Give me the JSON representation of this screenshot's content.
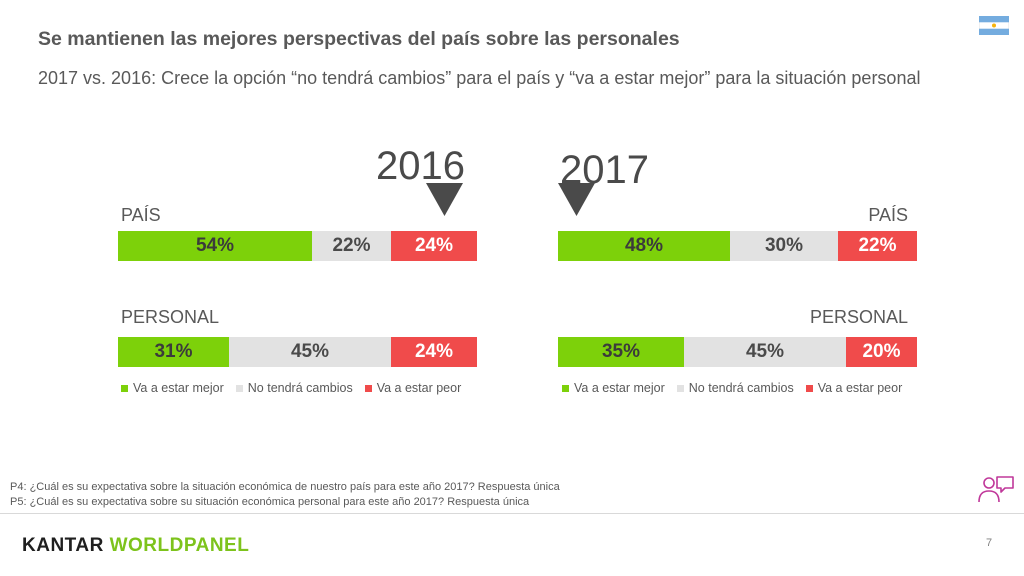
{
  "header": {
    "title": "Se mantienen las mejores perspectivas del país sobre las personales",
    "subtitle": "2017 vs. 2016: Crece la opción “no tendrá cambios” para el país y “va a estar mejor” para la situación personal"
  },
  "colors": {
    "good": "#7dd10a",
    "same": "#e2e2e2",
    "bad": "#f04b4b"
  },
  "chart_data": [
    {
      "type": "bar",
      "stacked": true,
      "title": "2016",
      "categories": [
        "PAÍS",
        "PERSONAL"
      ],
      "series": [
        {
          "name": "Va a estar mejor",
          "values": [
            54,
            31
          ],
          "labels": [
            "54%",
            "31%"
          ]
        },
        {
          "name": "No tendrá cambios",
          "values": [
            22,
            45
          ],
          "labels": [
            "22%",
            "45%"
          ]
        },
        {
          "name": "Va a estar peor",
          "values": [
            24,
            24
          ],
          "labels": [
            "24%",
            "24%"
          ]
        }
      ],
      "legend": "bottom"
    },
    {
      "type": "bar",
      "stacked": true,
      "title": "2017",
      "categories": [
        "PAÍS",
        "PERSONAL"
      ],
      "series": [
        {
          "name": "Va a estar mejor",
          "values": [
            48,
            35
          ],
          "labels": [
            "48%",
            "35%"
          ]
        },
        {
          "name": "No tendrá cambios",
          "values": [
            30,
            45
          ],
          "labels": [
            "30%",
            "45%"
          ]
        },
        {
          "name": "Va a estar peor",
          "values": [
            22,
            20
          ],
          "labels": [
            "22%",
            "20%"
          ]
        }
      ],
      "legend": "bottom"
    }
  ],
  "footnotes": {
    "p4": "P4: ¿Cuál es su expectativa sobre la situación económica de nuestro país para este año 2017? Respuesta única",
    "p5": "P5: ¿Cuál es su expectativa sobre su situación económica personal para este año 2017? Respuesta única"
  },
  "brand": {
    "part1": "KANTAR ",
    "part2": "WORLDPANEL"
  },
  "page_number": "7",
  "icons": {
    "flag": "argentina-flag-icon",
    "people": "people-chat-icon",
    "arrow": "down-triangle-icon"
  }
}
